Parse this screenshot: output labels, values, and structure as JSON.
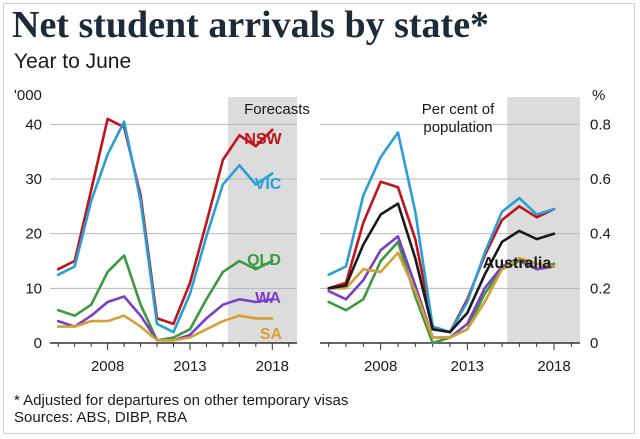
{
  "header": {
    "title": "Net student arrivals by state*",
    "subtitle": "Year to June"
  },
  "footer": {
    "footnote": "* Adjusted for departures on other temporary visas",
    "sources": "Sources: ABS, DIBP, RBA"
  },
  "colors": {
    "NSW": "#c0141d",
    "VIC": "#2a9fd6",
    "QLD": "#3b9a3f",
    "WA": "#7a3fc4",
    "SA": "#d4a035",
    "Australia": "#1a1a1a",
    "forecast_band": "#dcdcdc",
    "grid": "#b8b8b8",
    "axis": "#333333"
  },
  "chart_data": [
    {
      "type": "line",
      "panel": "left",
      "ylabel": "'000",
      "ylim": [
        0,
        45
      ],
      "yticks": [
        0,
        10,
        20,
        30,
        40
      ],
      "xlim": [
        2004.5,
        2019.5
      ],
      "xticks": [
        2008,
        2013,
        2018
      ],
      "forecast_band": [
        2015.3,
        2019.5
      ],
      "forecast_label": "Forecasts",
      "x": [
        2005,
        2006,
        2007,
        2008,
        2009,
        2010,
        2011,
        2012,
        2013,
        2014,
        2015,
        2016,
        2017,
        2018
      ],
      "series": [
        {
          "name": "NSW",
          "label": "NSW",
          "values": [
            13.5,
            15,
            28,
            41,
            39.5,
            27,
            4.5,
            3.5,
            11,
            22,
            33.5,
            38,
            36,
            39
          ]
        },
        {
          "name": "VIC",
          "label": "VIC",
          "values": [
            12.5,
            14,
            26,
            34.5,
            40.5,
            26,
            3.5,
            2,
            9,
            19.5,
            29,
            32.5,
            29,
            31
          ]
        },
        {
          "name": "QLD",
          "label": "QLD",
          "values": [
            6,
            5,
            7,
            13,
            16,
            7,
            0.5,
            1,
            2.5,
            8,
            13,
            15,
            13.5,
            15
          ]
        },
        {
          "name": "WA",
          "label": "WA",
          "values": [
            4,
            3,
            5,
            7.5,
            8.5,
            5,
            0.5,
            0.5,
            1.5,
            4.5,
            7,
            8,
            7.5,
            8
          ]
        },
        {
          "name": "SA",
          "label": "SA",
          "values": [
            3,
            3,
            4,
            4,
            5,
            3,
            0.5,
            0.5,
            1,
            2.5,
            4,
            5,
            4.5,
            4.5
          ]
        }
      ]
    },
    {
      "type": "line",
      "panel": "right",
      "ylabel": "%",
      "ylim": [
        0,
        0.9
      ],
      "yticks": [
        0,
        0.2,
        0.4,
        0.6,
        0.8
      ],
      "ytick_labels": [
        "0",
        "0.2",
        "0.4",
        "0.6",
        "0.8"
      ],
      "xlim": [
        2004.5,
        2019.5
      ],
      "xticks": [
        2008,
        2013,
        2018
      ],
      "forecast_band": [
        2015.3,
        2019.5
      ],
      "forecast_label_lines": [
        "Per cent of",
        "population"
      ],
      "x": [
        2005,
        2006,
        2007,
        2008,
        2009,
        2010,
        2011,
        2012,
        2013,
        2014,
        2015,
        2016,
        2017,
        2018
      ],
      "series": [
        {
          "name": "NSW",
          "values": [
            0.2,
            0.22,
            0.44,
            0.59,
            0.57,
            0.38,
            0.06,
            0.04,
            0.16,
            0.32,
            0.45,
            0.5,
            0.46,
            0.49
          ]
        },
        {
          "name": "VIC",
          "values": [
            0.25,
            0.28,
            0.54,
            0.68,
            0.77,
            0.48,
            0.06,
            0.04,
            0.15,
            0.33,
            0.48,
            0.53,
            0.47,
            0.49
          ]
        },
        {
          "name": "QLD",
          "values": [
            0.15,
            0.12,
            0.16,
            0.3,
            0.37,
            0.17,
            0.0,
            0.02,
            0.05,
            0.18,
            0.27,
            0.3,
            0.27,
            0.29
          ]
        },
        {
          "name": "WA",
          "values": [
            0.19,
            0.16,
            0.23,
            0.34,
            0.39,
            0.21,
            0.02,
            0.02,
            0.07,
            0.2,
            0.28,
            0.31,
            0.27,
            0.28
          ]
        },
        {
          "name": "SA",
          "values": [
            0.2,
            0.2,
            0.27,
            0.26,
            0.33,
            0.19,
            0.02,
            0.02,
            0.05,
            0.15,
            0.27,
            0.31,
            0.29,
            0.28
          ]
        },
        {
          "name": "Australia",
          "label": "Australia",
          "values": [
            0.2,
            0.21,
            0.36,
            0.47,
            0.51,
            0.31,
            0.05,
            0.04,
            0.11,
            0.25,
            0.37,
            0.41,
            0.38,
            0.4
          ]
        }
      ]
    }
  ]
}
